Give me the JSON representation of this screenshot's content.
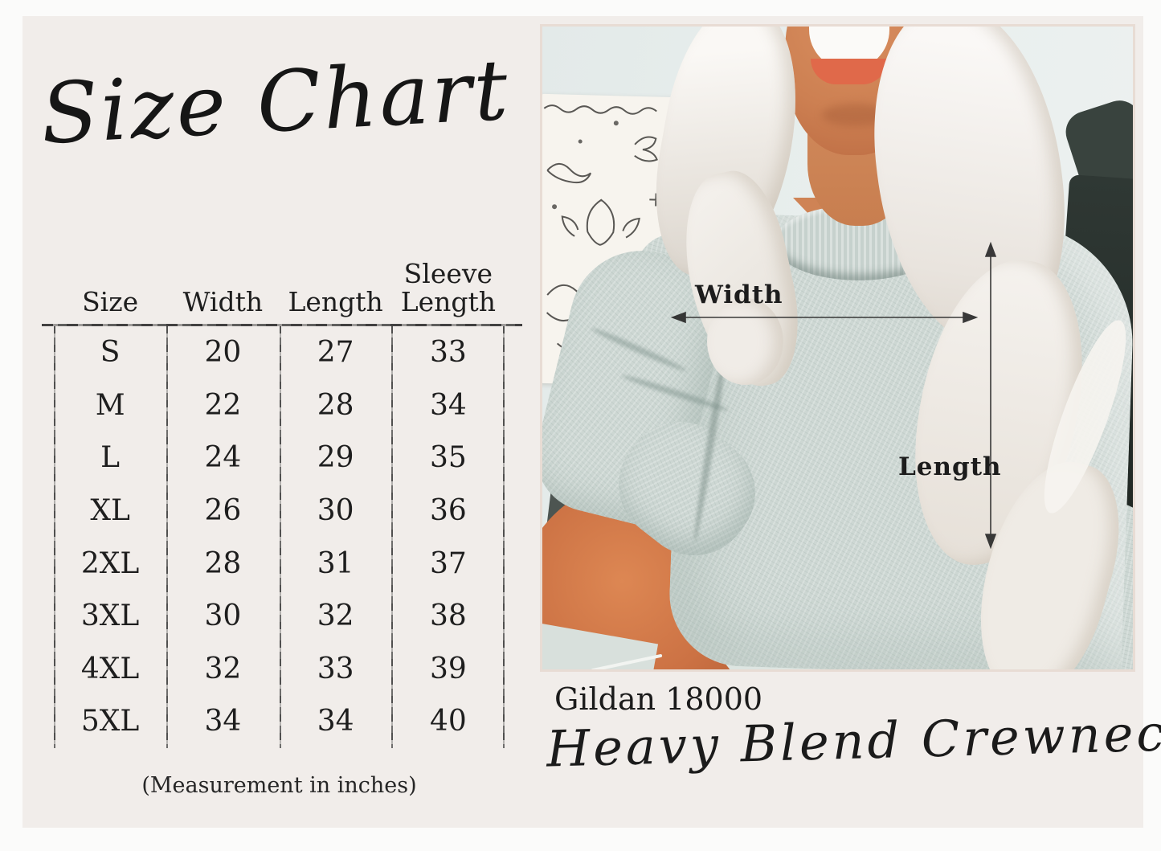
{
  "title": "Size Chart",
  "size_table": {
    "headers": [
      "Size",
      "Width",
      "Length",
      "Sleeve\nLength"
    ],
    "rows": [
      [
        "S",
        "20",
        "27",
        "33"
      ],
      [
        "M",
        "22",
        "28",
        "34"
      ],
      [
        "L",
        "24",
        "29",
        "35"
      ],
      [
        "XL",
        "26",
        "30",
        "36"
      ],
      [
        "2XL",
        "28",
        "31",
        "37"
      ],
      [
        "3XL",
        "30",
        "32",
        "38"
      ],
      [
        "4XL",
        "32",
        "33",
        "39"
      ],
      [
        "5XL",
        "34",
        "34",
        "40"
      ]
    ],
    "units_note": "(Measurement in inches)"
  },
  "photo": {
    "annotations": {
      "width_label": "Width",
      "length_label": "Length"
    }
  },
  "product": {
    "model": "Gildan 18000",
    "name": "Heavy Blend Crewneck"
  },
  "colors": {
    "panel_bg": "#f1edea",
    "text": "#1e1e1e",
    "table_line": "#2e2e2e",
    "sweatshirt": "#cdd7d3",
    "wall": "#e5ebea",
    "skin": "#cd8052",
    "photo_border": "#e8dcd4"
  }
}
